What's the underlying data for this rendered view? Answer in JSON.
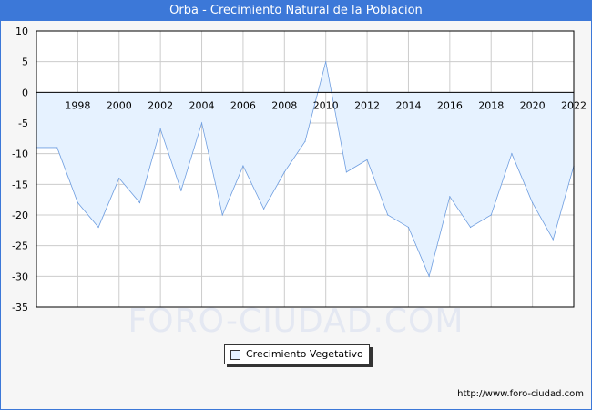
{
  "header": {
    "title": "Orba - Crecimiento Natural de la Poblacion"
  },
  "watermark": "FORO-CIUDAD.COM",
  "source": "http://www.foro-ciudad.com",
  "colors": {
    "frame": "#3c78d8",
    "fill": "#e6f2ff",
    "line": "#6f9ee0",
    "grid": "#cccccc",
    "zero": "#000000"
  },
  "chart_data": {
    "type": "area",
    "title": "Orba - Crecimiento Natural de la Poblacion",
    "xlabel": "",
    "ylabel": "",
    "xlim": [
      1996,
      2022
    ],
    "ylim": [
      -35,
      10
    ],
    "yticks": [
      10,
      5,
      0,
      -5,
      -10,
      -15,
      -20,
      -25,
      -30,
      -35
    ],
    "xticks": [
      1998,
      2000,
      2002,
      2004,
      2006,
      2008,
      2010,
      2012,
      2014,
      2016,
      2018,
      2020,
      2022
    ],
    "grid": true,
    "legend_position": "bottom-center",
    "x": [
      1996,
      1997,
      1998,
      1999,
      2000,
      2001,
      2002,
      2003,
      2004,
      2005,
      2006,
      2007,
      2008,
      2009,
      2010,
      2011,
      2012,
      2013,
      2014,
      2015,
      2016,
      2017,
      2018,
      2019,
      2020,
      2021,
      2022
    ],
    "series": [
      {
        "name": "Crecimiento Vegetativo",
        "values": [
          -9,
          -9,
          -18,
          -22,
          -14,
          -18,
          -6,
          -16,
          -5,
          -20,
          -12,
          -19,
          -13,
          -8,
          5,
          -13,
          -11,
          -20,
          -22,
          -30,
          -17,
          -22,
          -20,
          -10,
          -18,
          -24,
          -12
        ]
      }
    ]
  }
}
